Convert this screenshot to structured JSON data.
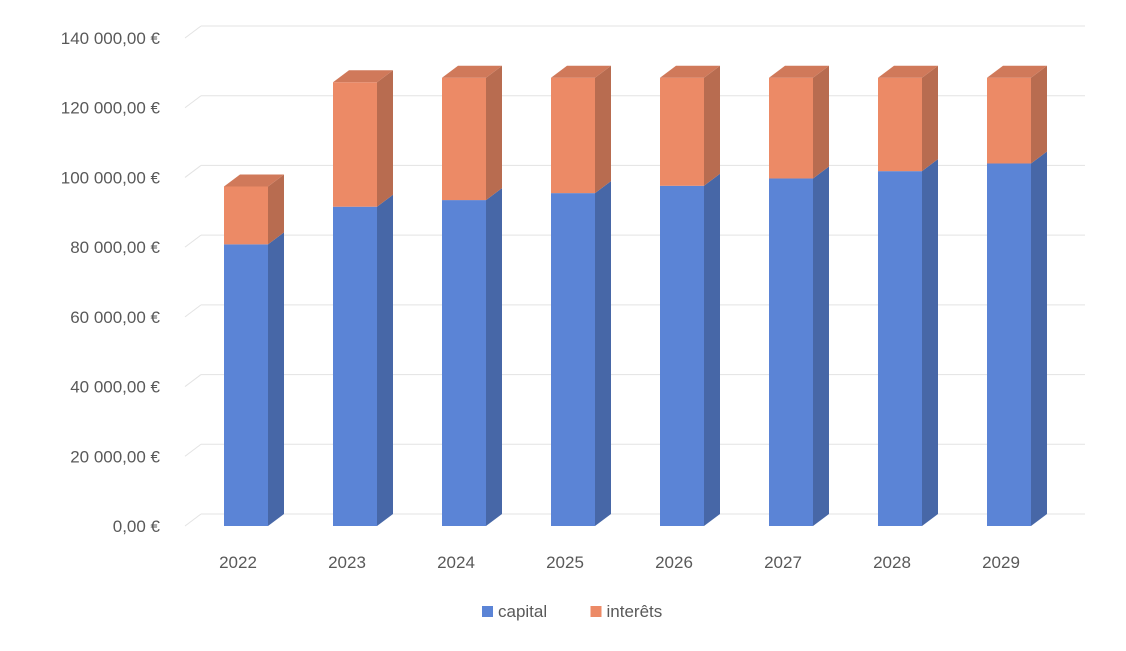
{
  "chart_data": {
    "type": "bar",
    "stacked": true,
    "style": "3d",
    "categories": [
      "2022",
      "2023",
      "2024",
      "2025",
      "2026",
      "2027",
      "2028",
      "2029"
    ],
    "series": [
      {
        "name": "capital",
        "color": "#5b84d6",
        "values": [
          80800,
          91600,
          93500,
          95500,
          97600,
          99700,
          101800,
          104000
        ]
      },
      {
        "name": "interêts",
        "color": "#ec8a66",
        "values": [
          16600,
          35700,
          35100,
          33100,
          31000,
          28900,
          26800,
          24600
        ]
      }
    ],
    "y_ticks": [
      "0,00 €",
      "20 000,00 €",
      "40 000,00 €",
      "60 000,00 €",
      "80 000,00 €",
      "100 000,00 €",
      "120 000,00 €",
      "140 000,00 €"
    ],
    "ylim": [
      0,
      140000
    ],
    "grid": true,
    "legend": "bottom",
    "title": "",
    "xlabel": "",
    "ylabel": ""
  }
}
